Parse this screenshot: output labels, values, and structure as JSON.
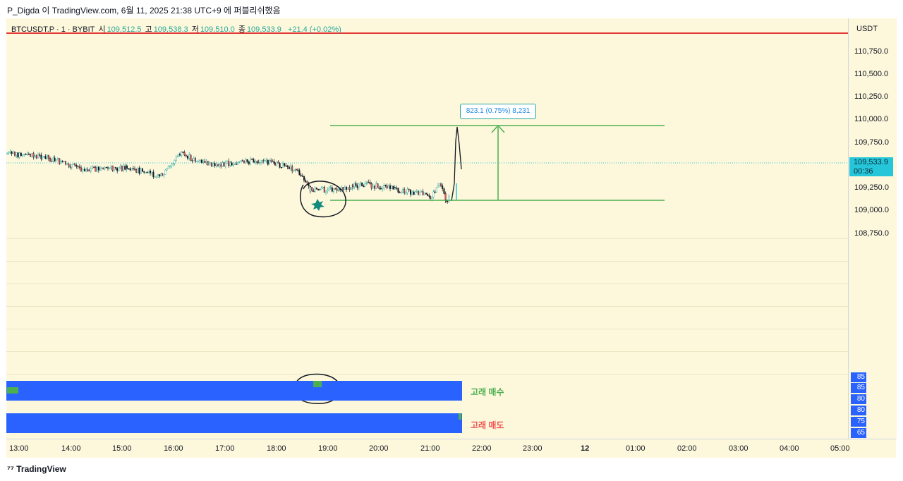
{
  "header": {
    "text": "P_Digda 이 TradingView.com, 6월 11, 2025 21:38 UTC+9 에 퍼블리쉬했음"
  },
  "symbol": {
    "name": "BTCUSDT.P · 1 · BYBIT",
    "open_label": "시",
    "open": "109,512.5",
    "high_label": "고",
    "high": "109,538.3",
    "low_label": "저",
    "low": "109,510.0",
    "close_label": "종",
    "close": "109,533.9",
    "change": "+21.4 (+0.02%)"
  },
  "price_axis": {
    "currency": "USDT",
    "ticks": [
      "110,750.0",
      "110,500.0",
      "110,250.0",
      "110,000.0",
      "109,750.0",
      "109,250.0",
      "109,000.0",
      "108,750.0"
    ],
    "current_price": "109,533.9",
    "countdown": "00:36"
  },
  "time_axis": {
    "ticks": [
      "13:00",
      "14:00",
      "15:00",
      "16:00",
      "17:00",
      "18:00",
      "19:00",
      "20:00",
      "21:00",
      "22:00",
      "23:00",
      "12",
      "01:00",
      "02:00",
      "03:00",
      "04:00",
      "05:00"
    ]
  },
  "measure": {
    "label": "823.1 (0.75%) 8,231"
  },
  "indicator": {
    "buy_label": "고래 매수",
    "sell_label": "고래 매도",
    "ticks": [
      "85",
      "85",
      "80",
      "80",
      "75",
      "65"
    ]
  },
  "footer": {
    "brand": "TradingView"
  },
  "colors": {
    "up": "#26a69a",
    "down": "#ef5350",
    "blue": "#2962ff",
    "green": "#4caf50",
    "bg": "#fdf8dc"
  }
}
